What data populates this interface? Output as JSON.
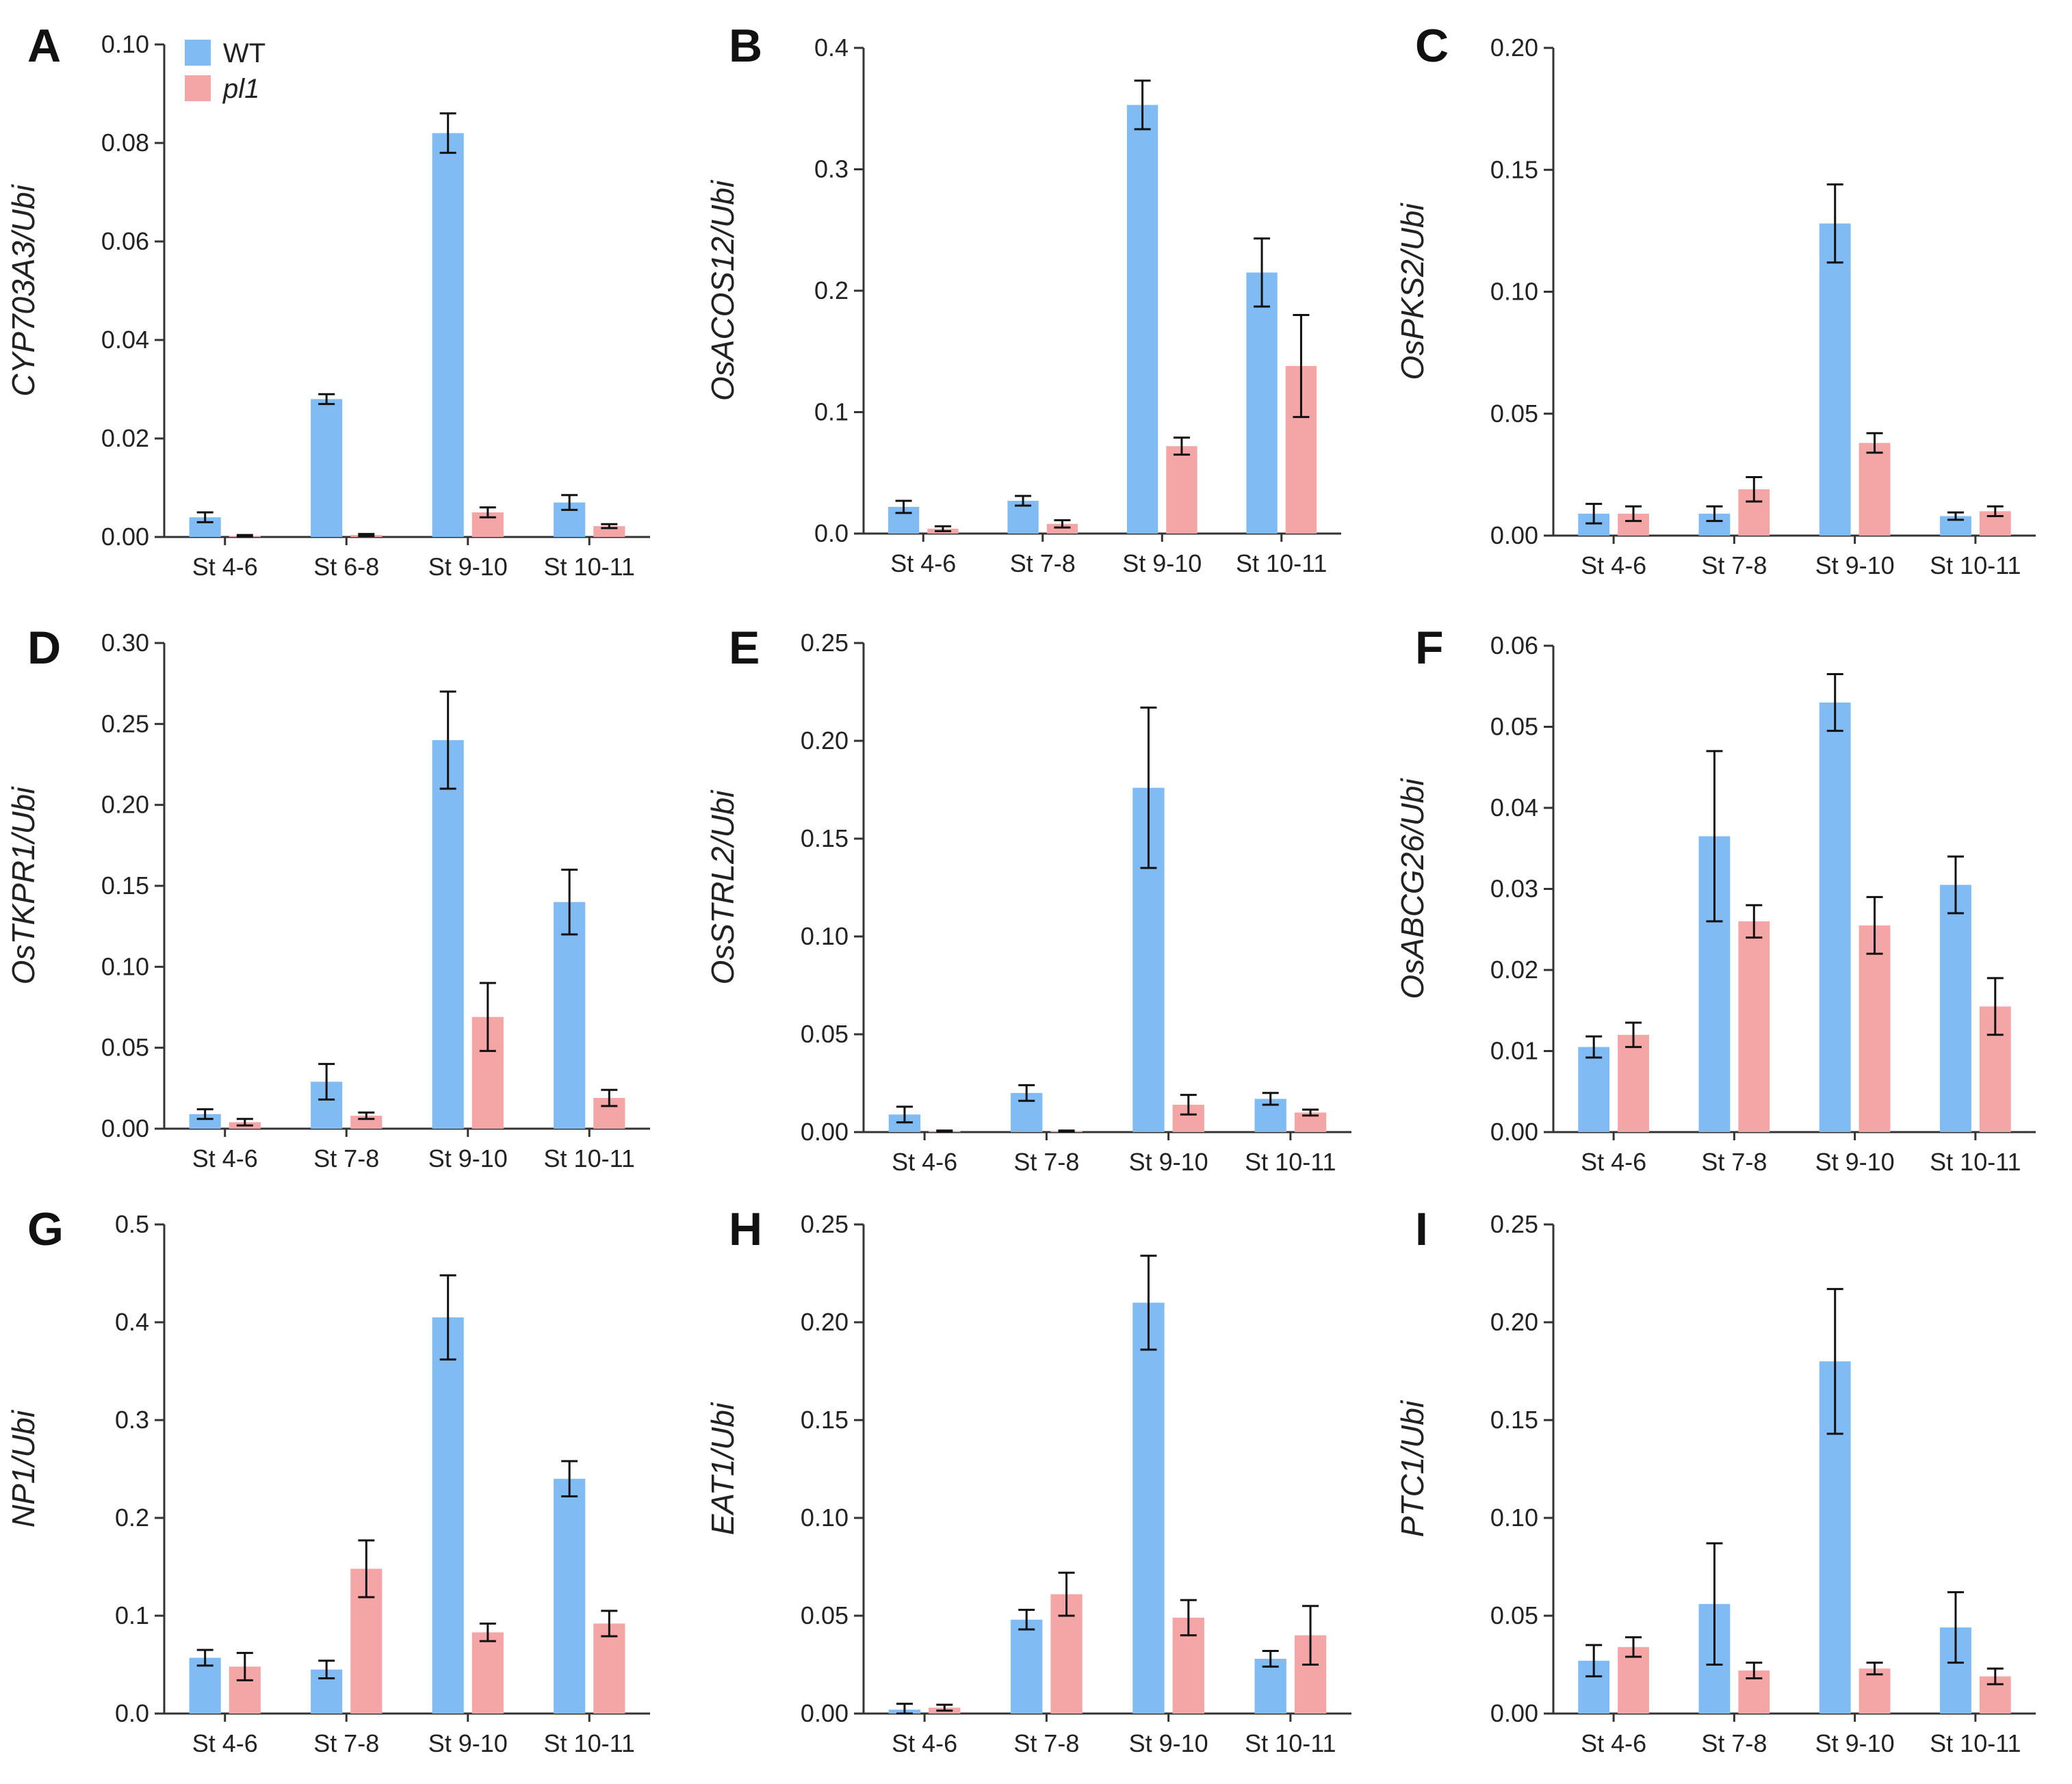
{
  "colors": {
    "wt": "#80BCF3",
    "pl1": "#F4A6A6",
    "axis": "#333333",
    "error": "#111111"
  },
  "legend": {
    "items": [
      {
        "label": "WT",
        "italic": false
      },
      {
        "label": "pl1",
        "italic": true
      }
    ]
  },
  "chart_data": [
    {
      "panel": "A",
      "type": "bar",
      "ylabel": "CYP703A3/Ubi",
      "categories": [
        "St 4-6",
        "St 6-8",
        "St 9-10",
        "St 10-11"
      ],
      "ylim": [
        0,
        0.1
      ],
      "yticks": [
        "0.00",
        "0.02",
        "0.04",
        "0.06",
        "0.08",
        "0.10"
      ],
      "series": [
        {
          "name": "WT",
          "values": [
            0.004,
            0.028,
            0.082,
            0.007
          ],
          "errors": [
            0.001,
            0.001,
            0.004,
            0.0015
          ]
        },
        {
          "name": "pl1",
          "values": [
            0.0002,
            0.0004,
            0.005,
            0.0022
          ],
          "errors": [
            0.0002,
            0.0002,
            0.001,
            0.0004
          ]
        }
      ]
    },
    {
      "panel": "B",
      "type": "bar",
      "ylabel": "OsACOS12/Ubi",
      "categories": [
        "St 4-6",
        "St 7-8",
        "St 9-10",
        "St 10-11"
      ],
      "ylim": [
        0,
        0.4
      ],
      "yticks": [
        "0.0",
        "0.1",
        "0.2",
        "0.3",
        "0.4"
      ],
      "series": [
        {
          "name": "WT",
          "values": [
            0.022,
            0.027,
            0.353,
            0.215
          ],
          "errors": [
            0.005,
            0.004,
            0.02,
            0.028
          ]
        },
        {
          "name": "pl1",
          "values": [
            0.004,
            0.008,
            0.072,
            0.138
          ],
          "errors": [
            0.002,
            0.003,
            0.007,
            0.042
          ]
        }
      ]
    },
    {
      "panel": "C",
      "type": "bar",
      "ylabel": "OsPKS2/Ubi",
      "categories": [
        "St 4-6",
        "St 7-8",
        "St 9-10",
        "St 10-11"
      ],
      "ylim": [
        0,
        0.2
      ],
      "yticks": [
        "0.00",
        "0.05",
        "0.10",
        "0.15",
        "0.20"
      ],
      "series": [
        {
          "name": "WT",
          "values": [
            0.009,
            0.009,
            0.128,
            0.008
          ],
          "errors": [
            0.004,
            0.003,
            0.016,
            0.0015
          ]
        },
        {
          "name": "pl1",
          "values": [
            0.009,
            0.019,
            0.038,
            0.01
          ],
          "errors": [
            0.003,
            0.005,
            0.004,
            0.002
          ]
        }
      ]
    },
    {
      "panel": "D",
      "type": "bar",
      "ylabel": "OsTKPR1/Ubi",
      "categories": [
        "St 4-6",
        "St 7-8",
        "St 9-10",
        "St 10-11"
      ],
      "ylim": [
        0,
        0.3
      ],
      "yticks": [
        "0.00",
        "0.05",
        "0.10",
        "0.15",
        "0.20",
        "0.25",
        "0.30"
      ],
      "series": [
        {
          "name": "WT",
          "values": [
            0.009,
            0.029,
            0.24,
            0.14
          ],
          "errors": [
            0.003,
            0.011,
            0.03,
            0.02
          ]
        },
        {
          "name": "pl1",
          "values": [
            0.004,
            0.008,
            0.069,
            0.019
          ],
          "errors": [
            0.002,
            0.002,
            0.021,
            0.005
          ]
        }
      ]
    },
    {
      "panel": "E",
      "type": "bar",
      "ylabel": "OsSTRL2/Ubi",
      "categories": [
        "St 4-6",
        "St 7-8",
        "St 9-10",
        "St 10-11"
      ],
      "ylim": [
        0,
        0.25
      ],
      "yticks": [
        "0.00",
        "0.05",
        "0.10",
        "0.15",
        "0.20",
        "0.25"
      ],
      "series": [
        {
          "name": "WT",
          "values": [
            0.009,
            0.02,
            0.176,
            0.017
          ],
          "errors": [
            0.004,
            0.004,
            0.041,
            0.003
          ]
        },
        {
          "name": "pl1",
          "values": [
            0.0005,
            0.0005,
            0.014,
            0.01
          ],
          "errors": [
            0.0003,
            0.0003,
            0.005,
            0.0015
          ]
        }
      ]
    },
    {
      "panel": "F",
      "type": "bar",
      "ylabel": "OsABCG26/Ubi",
      "categories": [
        "St 4-6",
        "St 7-8",
        "St 9-10",
        "St 10-11"
      ],
      "ylim": [
        0,
        0.06
      ],
      "yticks": [
        "0.00",
        "0.01",
        "0.02",
        "0.03",
        "0.04",
        "0.05",
        "0.06"
      ],
      "series": [
        {
          "name": "WT",
          "values": [
            0.0105,
            0.0365,
            0.053,
            0.0305
          ],
          "errors": [
            0.0013,
            0.0105,
            0.0035,
            0.0035
          ]
        },
        {
          "name": "pl1",
          "values": [
            0.012,
            0.026,
            0.0255,
            0.0155
          ],
          "errors": [
            0.0015,
            0.002,
            0.0035,
            0.0035
          ]
        }
      ]
    },
    {
      "panel": "G",
      "type": "bar",
      "ylabel": "NP1/Ubi",
      "categories": [
        "St 4-6",
        "St 7-8",
        "St 9-10",
        "St 10-11"
      ],
      "ylim": [
        0,
        0.5
      ],
      "yticks": [
        "0.0",
        "0.1",
        "0.2",
        "0.3",
        "0.4",
        "0.5"
      ],
      "series": [
        {
          "name": "WT",
          "values": [
            0.057,
            0.045,
            0.405,
            0.24
          ],
          "errors": [
            0.008,
            0.009,
            0.043,
            0.018
          ]
        },
        {
          "name": "pl1",
          "values": [
            0.048,
            0.148,
            0.083,
            0.092
          ],
          "errors": [
            0.014,
            0.029,
            0.009,
            0.013
          ]
        }
      ]
    },
    {
      "panel": "H",
      "type": "bar",
      "ylabel": "EAT1/Ubi",
      "categories": [
        "St 4-6",
        "St 7-8",
        "St 9-10",
        "St 10-11"
      ],
      "ylim": [
        0,
        0.25
      ],
      "yticks": [
        "0.00",
        "0.05",
        "0.10",
        "0.15",
        "0.20",
        "0.25"
      ],
      "series": [
        {
          "name": "WT",
          "values": [
            0.002,
            0.048,
            0.21,
            0.028
          ],
          "errors": [
            0.003,
            0.005,
            0.024,
            0.004
          ]
        },
        {
          "name": "pl1",
          "values": [
            0.003,
            0.061,
            0.049,
            0.04
          ],
          "errors": [
            0.0015,
            0.011,
            0.009,
            0.015
          ]
        }
      ]
    },
    {
      "panel": "I",
      "type": "bar",
      "ylabel": "PTC1/Ubi",
      "categories": [
        "St 4-6",
        "St 7-8",
        "St 9-10",
        "St 10-11"
      ],
      "ylim": [
        0,
        0.25
      ],
      "yticks": [
        "0.00",
        "0.05",
        "0.10",
        "0.15",
        "0.20",
        "0.25"
      ],
      "series": [
        {
          "name": "WT",
          "values": [
            0.027,
            0.056,
            0.18,
            0.044
          ],
          "errors": [
            0.008,
            0.031,
            0.037,
            0.018
          ]
        },
        {
          "name": "pl1",
          "values": [
            0.034,
            0.022,
            0.023,
            0.019
          ],
          "errors": [
            0.005,
            0.004,
            0.003,
            0.004
          ]
        }
      ]
    }
  ]
}
